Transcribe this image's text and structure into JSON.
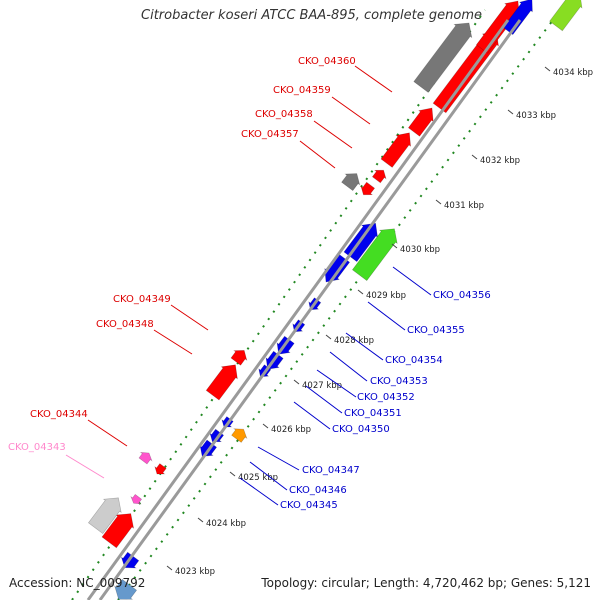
{
  "title": "Citrobacter koseri ATCC BAA-895, complete genome",
  "footer": {
    "accession": "Accession: NC_009792",
    "summary": "Topology: circular; Length: 4,720,462 bp; Genes: 5,121"
  },
  "colors": {
    "red": "#ff0000",
    "blue": "#0000ee",
    "green": "#44dd22",
    "lime": "#88dd22",
    "gray": "#777777",
    "lightgray": "#cccccc",
    "pink": "#ff55cc",
    "orange": "#ff9900",
    "lightblue": "#6699cc",
    "backbone": "#9a9a9a",
    "dots": "#228822"
  },
  "scale_ticks": [
    "4023 kbp",
    "4024 kbp",
    "4025 kbp",
    "4026 kbp",
    "4027 kbp",
    "4028 kbp",
    "4029 kbp",
    "4030 kbp",
    "4031 kbp",
    "4032 kbp",
    "4033 kbp",
    "4034 kbp"
  ],
  "gene_labels": [
    {
      "text": "CKO_04360",
      "color": "red"
    },
    {
      "text": "CKO_04359",
      "color": "red"
    },
    {
      "text": "CKO_04358",
      "color": "red"
    },
    {
      "text": "CKO_04357",
      "color": "red"
    },
    {
      "text": "CKO_04349",
      "color": "red"
    },
    {
      "text": "CKO_04348",
      "color": "red"
    },
    {
      "text": "CKO_04344",
      "color": "red"
    },
    {
      "text": "CKO_04343",
      "color": "pink"
    },
    {
      "text": "CKO_04356",
      "color": "blue"
    },
    {
      "text": "CKO_04355",
      "color": "blue"
    },
    {
      "text": "CKO_04354",
      "color": "blue"
    },
    {
      "text": "CKO_04353",
      "color": "blue"
    },
    {
      "text": "CKO_04352",
      "color": "blue"
    },
    {
      "text": "CKO_04351",
      "color": "blue"
    },
    {
      "text": "CKO_04350",
      "color": "blue"
    },
    {
      "text": "CKO_04347",
      "color": "blue"
    },
    {
      "text": "CKO_04346",
      "color": "blue"
    },
    {
      "text": "CKO_04345",
      "color": "blue"
    }
  ]
}
